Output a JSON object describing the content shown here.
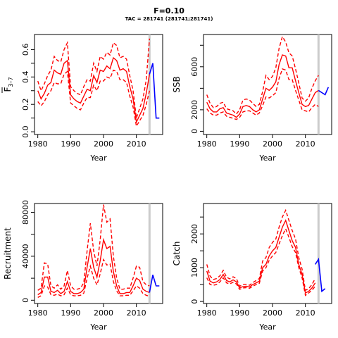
{
  "header": {
    "title": "F=0.10",
    "subtitle": "TAC = 281741 (281741;281741)"
  },
  "colors": {
    "estimate": "#ff0000",
    "projection": "#0000ff",
    "divider": "#cccccc",
    "axis": "#000000"
  },
  "chart_data": [
    {
      "type": "line",
      "id": "fbar",
      "ylabel": "F̅ 3–7",
      "ylabel_main": "F",
      "ylabel_sub": "3–7",
      "xlabel": "Year",
      "xlim": [
        1979,
        2018
      ],
      "ylim": [
        -0.02,
        0.71
      ],
      "x_ticks": [
        1980,
        1990,
        2000,
        2010
      ],
      "x_tick_labels": [
        "1980",
        "1990",
        "2000",
        "2010"
      ],
      "y_ticks": [
        0.0,
        0.1,
        0.2,
        0.3,
        0.4,
        0.5,
        0.6
      ],
      "y_tick_labels": [
        "0.0",
        "",
        "0.2",
        "",
        "0.4",
        "",
        "0.6"
      ],
      "divider_x": 2014,
      "years": [
        1980,
        1981,
        1982,
        1983,
        1984,
        1985,
        1986,
        1987,
        1988,
        1989,
        1990,
        1991,
        1992,
        1993,
        1994,
        1995,
        1996,
        1997,
        1998,
        1999,
        2000,
        2001,
        2002,
        2003,
        2004,
        2005,
        2006,
        2007,
        2008,
        2009,
        2010,
        2011,
        2012,
        2013,
        2014
      ],
      "estimate": [
        0.3,
        0.24,
        0.28,
        0.34,
        0.36,
        0.45,
        0.43,
        0.42,
        0.5,
        0.52,
        0.27,
        0.24,
        0.22,
        0.21,
        0.26,
        0.31,
        0.3,
        0.41,
        0.36,
        0.45,
        0.44,
        0.48,
        0.46,
        0.54,
        0.52,
        0.45,
        0.46,
        0.44,
        0.33,
        0.24,
        0.07,
        0.12,
        0.17,
        0.28,
        0.42
      ],
      "lower": [
        0.22,
        0.19,
        0.22,
        0.27,
        0.3,
        0.36,
        0.35,
        0.35,
        0.42,
        0.44,
        0.21,
        0.19,
        0.17,
        0.16,
        0.21,
        0.25,
        0.25,
        0.34,
        0.3,
        0.37,
        0.37,
        0.4,
        0.39,
        0.45,
        0.44,
        0.38,
        0.38,
        0.36,
        0.26,
        0.18,
        0.04,
        0.08,
        0.12,
        0.2,
        0.3
      ],
      "upper": [
        0.37,
        0.3,
        0.35,
        0.41,
        0.45,
        0.55,
        0.52,
        0.51,
        0.6,
        0.65,
        0.33,
        0.3,
        0.28,
        0.27,
        0.33,
        0.38,
        0.37,
        0.5,
        0.44,
        0.55,
        0.53,
        0.58,
        0.56,
        0.65,
        0.63,
        0.54,
        0.55,
        0.53,
        0.41,
        0.3,
        0.1,
        0.17,
        0.24,
        0.38,
        0.68
      ],
      "projection": {
        "years": [
          2014,
          2015,
          2016,
          2017
        ],
        "values": [
          0.42,
          0.5,
          0.1,
          0.1
        ]
      }
    },
    {
      "type": "line",
      "id": "ssb",
      "ylabel": "SSB",
      "xlabel": "Year",
      "xlim": [
        1979,
        2018
      ],
      "ylim": [
        -300,
        9000
      ],
      "x_ticks": [
        1980,
        1990,
        2000,
        2010
      ],
      "x_tick_labels": [
        "1980",
        "1990",
        "2000",
        "2010"
      ],
      "y_ticks": [
        0,
        2000,
        4000,
        6000,
        8000
      ],
      "y_tick_labels": [
        "0",
        "2000",
        "",
        "6000",
        ""
      ],
      "divider_x": 2014,
      "years": [
        1980,
        1981,
        1982,
        1983,
        1984,
        1985,
        1986,
        1987,
        1988,
        1989,
        1990,
        1991,
        1992,
        1993,
        1994,
        1995,
        1996,
        1997,
        1998,
        1999,
        2000,
        2001,
        2002,
        2003,
        2004,
        2005,
        2006,
        2007,
        2008,
        2009,
        2010,
        2011,
        2012,
        2013,
        2014
      ],
      "estimate": [
        2700,
        2100,
        1800,
        1800,
        2100,
        2200,
        1700,
        1600,
        1500,
        1300,
        1600,
        2300,
        2400,
        2300,
        2000,
        1800,
        2000,
        3000,
        4000,
        3800,
        4100,
        4600,
        6200,
        7100,
        7000,
        5900,
        5900,
        4700,
        3600,
        2500,
        2300,
        2400,
        3000,
        3600,
        3800
      ],
      "lower": [
        2100,
        1700,
        1500,
        1500,
        1700,
        1800,
        1400,
        1300,
        1200,
        1100,
        1300,
        1800,
        1900,
        1900,
        1700,
        1500,
        1700,
        2400,
        3200,
        3100,
        3300,
        3600,
        4900,
        5800,
        5700,
        4800,
        4800,
        3800,
        2900,
        2000,
        1900,
        1800,
        2200,
        2500,
        2300
      ],
      "upper": [
        3400,
        2600,
        2200,
        2300,
        2600,
        2700,
        2100,
        2000,
        1900,
        1600,
        2000,
        2900,
        3000,
        2900,
        2600,
        2300,
        2500,
        3700,
        5200,
        4800,
        5100,
        5900,
        7700,
        8800,
        8300,
        7300,
        7000,
        5800,
        4500,
        3100,
        2800,
        3100,
        4000,
        4700,
        5200
      ],
      "projection": {
        "years": [
          2014,
          2015,
          2016,
          2017
        ],
        "values": [
          3800,
          3600,
          3400,
          4100
        ]
      }
    },
    {
      "type": "line",
      "id": "recruitment",
      "ylabel": "Recruitment",
      "xlabel": "Year",
      "xlim": [
        1979,
        2018
      ],
      "ylim": [
        -3000,
        88000
      ],
      "x_ticks": [
        1980,
        1990,
        2000,
        2010
      ],
      "x_tick_labels": [
        "1980",
        "1990",
        "2000",
        "2010"
      ],
      "y_ticks": [
        0,
        20000,
        40000,
        60000,
        80000
      ],
      "y_tick_labels": [
        "0",
        "",
        "40000",
        "",
        "80000"
      ],
      "divider_x": 2014,
      "years": [
        1980,
        1981,
        1982,
        1983,
        1984,
        1985,
        1986,
        1987,
        1988,
        1989,
        1990,
        1991,
        1992,
        1993,
        1994,
        1995,
        1996,
        1997,
        1998,
        1999,
        2000,
        2001,
        2002,
        2003,
        2004,
        2005,
        2006,
        2007,
        2008,
        2009,
        2010,
        2011,
        2012,
        2013,
        2014
      ],
      "estimate": [
        5000,
        7000,
        21000,
        21000,
        8000,
        7000,
        9000,
        6000,
        8000,
        17000,
        8000,
        6000,
        6000,
        7000,
        10000,
        30000,
        47000,
        30000,
        21000,
        36000,
        55000,
        47000,
        49000,
        26000,
        13000,
        6000,
        6000,
        7000,
        7000,
        13000,
        20000,
        18000,
        10000,
        8000,
        7000
      ],
      "lower": [
        2500,
        4000,
        13000,
        12000,
        5000,
        4500,
        5500,
        4000,
        5000,
        11000,
        5000,
        4000,
        4000,
        4500,
        6500,
        20000,
        31000,
        20000,
        14000,
        24000,
        37000,
        32000,
        33000,
        17000,
        8500,
        4000,
        4000,
        4500,
        4500,
        8500,
        13000,
        11000,
        6000,
        4500,
        3500
      ],
      "upper": [
        9000,
        11000,
        34000,
        33000,
        13000,
        11000,
        14000,
        10000,
        13000,
        27000,
        13000,
        10000,
        10000,
        11000,
        16000,
        45000,
        70000,
        45000,
        31000,
        55000,
        87000,
        71000,
        74000,
        40000,
        20000,
        10000,
        10000,
        11000,
        11000,
        20000,
        31000,
        30000,
        17000,
        14000,
        13000
      ],
      "projection": {
        "years": [
          2014,
          2015,
          2016,
          2017
        ],
        "values": [
          7000,
          23000,
          13000,
          13000
        ]
      }
    },
    {
      "type": "line",
      "id": "catch",
      "ylabel": "Catch",
      "xlabel": "Year",
      "xlim": [
        1979,
        2018
      ],
      "ylim": [
        -60,
        2900
      ],
      "x_ticks": [
        1980,
        1990,
        2000,
        2010
      ],
      "x_tick_labels": [
        "1980",
        "1990",
        "2000",
        "2010"
      ],
      "y_ticks": [
        0,
        1000,
        2000
      ],
      "y_tick_labels": [
        "0",
        "1000",
        "2000"
      ],
      "extra_y_ticks": [
        500,
        1500,
        2500
      ],
      "divider_x": 2014,
      "years": [
        1980,
        1981,
        1982,
        1983,
        1984,
        1985,
        1986,
        1987,
        1988,
        1989,
        1990,
        1991,
        1992,
        1993,
        1994,
        1995,
        1996,
        1997,
        1998,
        1999,
        2000,
        2001,
        2002,
        2003,
        2004,
        2005,
        2006,
        2007,
        2008,
        2009,
        2010,
        2011,
        2012,
        2013
      ],
      "estimate": [
        900,
        600,
        550,
        580,
        650,
        800,
        620,
        580,
        640,
        580,
        400,
        440,
        450,
        430,
        500,
        550,
        600,
        1000,
        1100,
        1350,
        1500,
        1600,
        1900,
        2200,
        2400,
        2100,
        1800,
        1600,
        1100,
        800,
        250,
        300,
        400,
        550
      ],
      "lower": [
        700,
        500,
        480,
        500,
        580,
        700,
        550,
        520,
        570,
        520,
        360,
        400,
        410,
        390,
        450,
        500,
        540,
        900,
        1000,
        1220,
        1350,
        1450,
        1700,
        1950,
        2150,
        1900,
        1620,
        1450,
        1000,
        700,
        180,
        250,
        330,
        450
      ],
      "upper": [
        1100,
        750,
        650,
        680,
        760,
        920,
        720,
        670,
        730,
        680,
        450,
        500,
        510,
        480,
        560,
        620,
        680,
        1200,
        1300,
        1600,
        1750,
        1850,
        2200,
        2500,
        2700,
        2400,
        2100,
        1850,
        1300,
        960,
        330,
        380,
        500,
        680
      ],
      "projection": {
        "years": [
          2013,
          2014,
          2015,
          2016
        ],
        "values": [
          1100,
          1250,
          300,
          380
        ]
      }
    }
  ]
}
